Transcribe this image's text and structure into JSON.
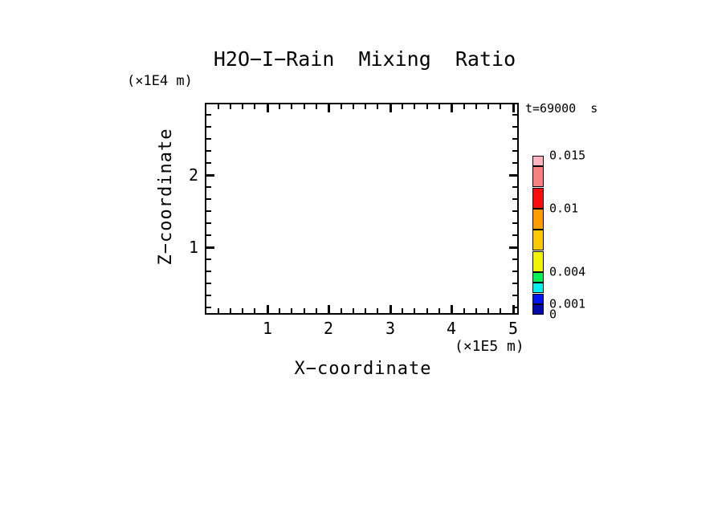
{
  "chart_data": {
    "type": "heatmap",
    "title": "H2O−I−Rain  Mixing  Ratio",
    "time_label": "t=69000  s",
    "xlabel": "X−coordinate",
    "x_unit": "(×1E5 m)",
    "xlim": [
      0,
      5.1
    ],
    "x_major_ticks": [
      1,
      2,
      3,
      4,
      5
    ],
    "x_minor_step": 0.2,
    "ylabel": "Z−coordinate",
    "y_unit": "(×1E4 m)",
    "ylim": [
      0,
      3.0
    ],
    "y_major_ticks": [
      2,
      1
    ],
    "grid": false,
    "contour_levels": [
      0,
      0.001,
      0.002,
      0.003,
      0.004,
      0.006,
      0.008,
      0.01,
      0.012,
      0.014,
      0.015
    ],
    "colorbar_colors": [
      "#0108A8",
      "#0414F0",
      "#00EEEE",
      "#00F055",
      "#F0F400",
      "#FFC800",
      "#FF9C00",
      "#FB0D0D",
      "#F88080",
      "#FFB4C0"
    ],
    "colorbar_labels": [
      {
        "text": "0.015",
        "value": 0.015
      },
      {
        "text": "0.01",
        "value": 0.01
      },
      {
        "text": "0.004",
        "value": 0.004
      },
      {
        "text": "0.001",
        "value": 0.001
      },
      {
        "text": "0",
        "value": 0
      }
    ],
    "values": [],
    "note": "plot area is empty - no contour cells drawn at this time step"
  }
}
